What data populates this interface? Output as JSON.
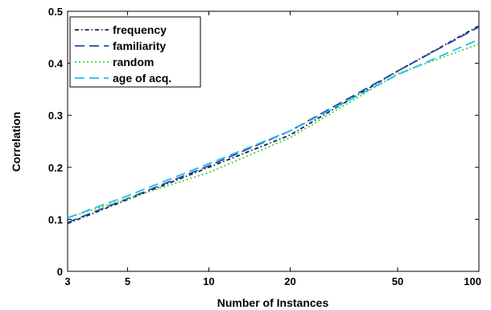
{
  "chart_data": {
    "type": "line",
    "title": "",
    "xlabel": "Number of Instances",
    "ylabel": "Correlation",
    "x_scale": "log",
    "x": [
      3,
      5,
      10,
      20,
      50,
      100
    ],
    "x_tick_labels": [
      "3",
      "5",
      "10",
      "20",
      "50",
      "100"
    ],
    "xlim": [
      3,
      100
    ],
    "ylim": [
      0,
      0.5
    ],
    "y_ticks": [
      0,
      0.1,
      0.2,
      0.3,
      0.4,
      0.5
    ],
    "y_tick_labels": [
      "0",
      "0.1",
      "0.2",
      "0.3",
      "0.4",
      "0.5"
    ],
    "grid": false,
    "legend_position": "top-left",
    "series": [
      {
        "name": "frequency",
        "values": [
          0.092,
          0.138,
          0.2,
          0.262,
          0.385,
          0.472
        ],
        "color": "#1a1a4e",
        "dash": "dashdot"
      },
      {
        "name": "familiarity",
        "values": [
          0.094,
          0.14,
          0.203,
          0.27,
          0.385,
          0.47
        ],
        "color": "#1f4e9c",
        "dash": "dashed"
      },
      {
        "name": "random",
        "values": [
          0.103,
          0.14,
          0.19,
          0.257,
          0.38,
          0.437
        ],
        "color": "#33dd33",
        "dash": "dotted"
      },
      {
        "name": "age of acq.",
        "values": [
          0.103,
          0.145,
          0.207,
          0.27,
          0.378,
          0.446
        ],
        "color": "#22bbee",
        "dash": "dashed"
      }
    ]
  }
}
